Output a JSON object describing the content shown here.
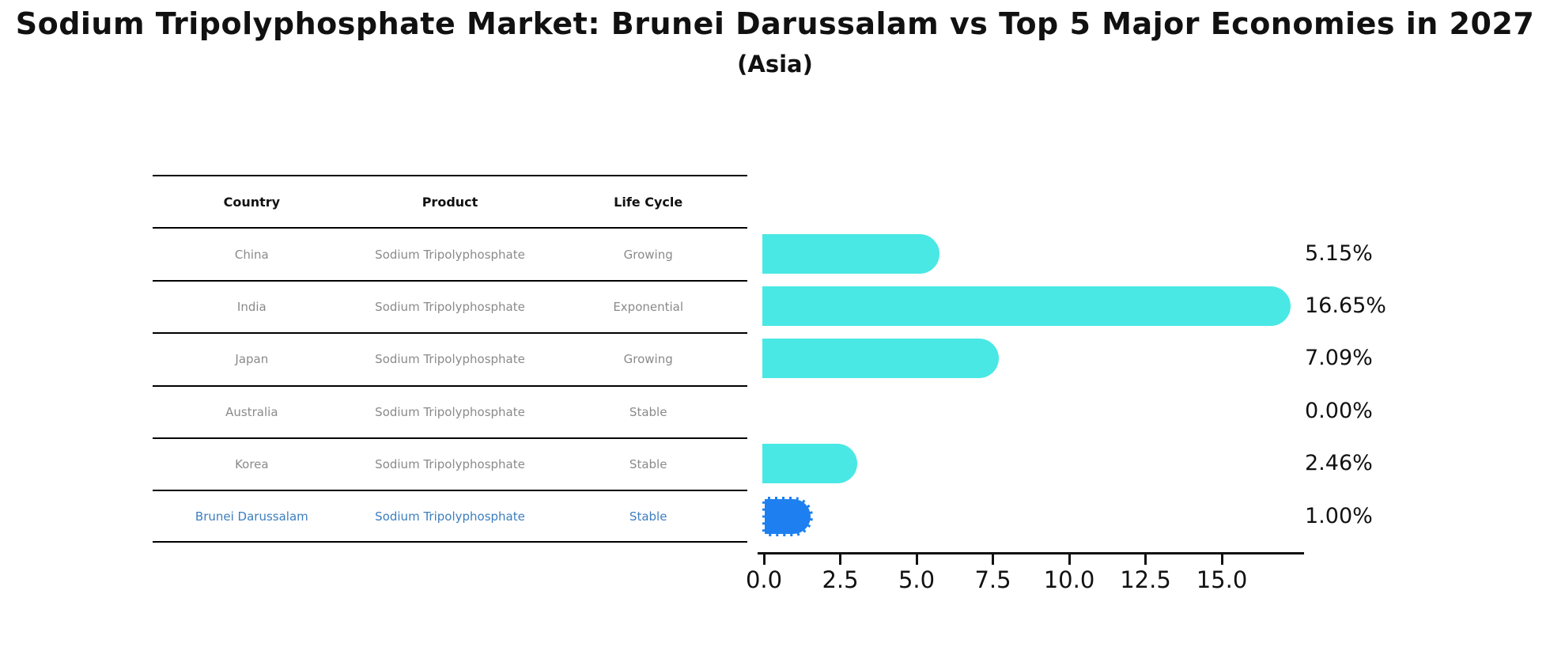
{
  "header": {
    "title": "Sodium Tripolyphosphate Market: Brunei Darussalam vs Top 5 Major Economies in 2027",
    "subtitle": "(Asia)"
  },
  "table": {
    "headers": [
      "Country",
      "Product",
      "Life Cycle"
    ],
    "rows": [
      {
        "country": "China",
        "product": "Sodium Tripolyphosphate",
        "life_cycle": "Growing",
        "highlighted": false
      },
      {
        "country": "India",
        "product": "Sodium Tripolyphosphate",
        "life_cycle": "Exponential",
        "highlighted": false
      },
      {
        "country": "Japan",
        "product": "Sodium Tripolyphosphate",
        "life_cycle": "Growing",
        "highlighted": false
      },
      {
        "country": "Australia",
        "product": "Sodium Tripolyphosphate",
        "life_cycle": "Stable",
        "highlighted": false
      },
      {
        "country": "Korea",
        "product": "Sodium Tripolyphosphate",
        "life_cycle": "Stable",
        "highlighted": false
      },
      {
        "country": "Brunei Darussalam",
        "product": "Sodium Tripolyphosphate",
        "life_cycle": "Stable",
        "highlighted": true
      }
    ]
  },
  "chart_data": {
    "type": "bar",
    "orientation": "horizontal",
    "title": "Sodium Tripolyphosphate Market: Brunei Darussalam vs Top 5 Major Economies in 2027 (Asia)",
    "categories": [
      "China",
      "India",
      "Japan",
      "Australia",
      "Korea",
      "Brunei Darussalam"
    ],
    "values": [
      5.15,
      16.65,
      7.09,
      0.0,
      2.46,
      1.0
    ],
    "value_labels": [
      "5.15%",
      "16.65%",
      "7.09%",
      "0.00%",
      "2.46%",
      "1.00%"
    ],
    "highlight_index": 5,
    "xlabel": "",
    "ylabel": "",
    "xlim": [
      0,
      17.5
    ],
    "x_ticks": [
      0,
      2.5,
      5,
      7.5,
      10,
      12.5,
      15
    ],
    "x_tick_labels": [
      "0.0",
      "2.5",
      "5.0",
      "7.5",
      "10.0",
      "12.5",
      "15.0"
    ],
    "grid": false,
    "legend": false,
    "bar_color": "#49E8E4",
    "highlight_bar_color": "#1E80F0",
    "highlight_text_color": "#3C7EBF"
  },
  "colors": {
    "bar_cyan": "#49E8E4",
    "bar_blue": "#1E80F0",
    "highlight_text_blue": "#3C7EBF",
    "table_text_gray": "#8A8A8A",
    "axis_black": "#111111"
  }
}
